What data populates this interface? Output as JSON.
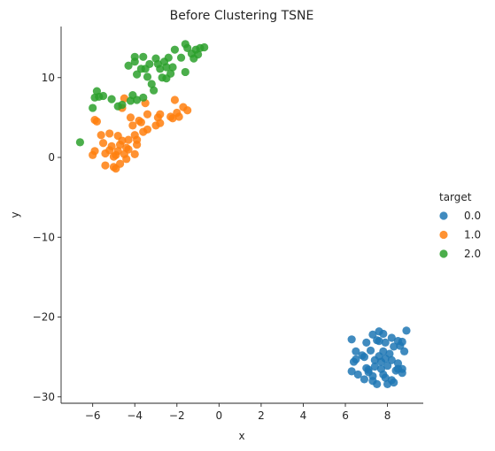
{
  "chart_data": {
    "type": "scatter",
    "title": "Before Clustering TSNE",
    "xlabel": "x",
    "ylabel": "y",
    "xlim": [
      -7.5,
      9.7
    ],
    "ylim": [
      -30.8,
      16.4
    ],
    "xticks": [
      -6,
      -4,
      -2,
      0,
      2,
      4,
      6,
      8
    ],
    "yticks": [
      -30,
      -20,
      -10,
      0,
      10
    ],
    "xtick_labels": [
      "−6",
      "−4",
      "−2",
      "0",
      "2",
      "4",
      "6",
      "8"
    ],
    "ytick_labels": [
      "−30",
      "−20",
      "−10",
      "0",
      "10"
    ],
    "grid": false,
    "legend": {
      "title": "target",
      "placement": "right"
    },
    "series": [
      {
        "name": "0.0",
        "color": "#1f77b4",
        "points": [
          [
            6.3,
            -22.8
          ],
          [
            6.5,
            -24.3
          ],
          [
            6.4,
            -25.6
          ],
          [
            6.8,
            -24.8
          ],
          [
            6.3,
            -26.8
          ],
          [
            7.0,
            -23.2
          ],
          [
            7.3,
            -22.2
          ],
          [
            7.6,
            -21.8
          ],
          [
            7.8,
            -22.1
          ],
          [
            7.5,
            -22.9
          ],
          [
            7.9,
            -23.2
          ],
          [
            8.2,
            -22.6
          ],
          [
            8.5,
            -23.0
          ],
          [
            8.7,
            -23.1
          ],
          [
            8.9,
            -21.7
          ],
          [
            7.2,
            -24.2
          ],
          [
            7.6,
            -24.9
          ],
          [
            7.8,
            -24.3
          ],
          [
            8.1,
            -24.6
          ],
          [
            8.3,
            -23.7
          ],
          [
            8.6,
            -23.6
          ],
          [
            8.8,
            -24.3
          ],
          [
            6.9,
            -25.0
          ],
          [
            7.4,
            -25.4
          ],
          [
            7.7,
            -25.6
          ],
          [
            7.9,
            -25.2
          ],
          [
            8.2,
            -25.4
          ],
          [
            8.5,
            -25.8
          ],
          [
            8.7,
            -26.5
          ],
          [
            6.6,
            -27.2
          ],
          [
            6.9,
            -27.8
          ],
          [
            7.1,
            -26.6
          ],
          [
            7.3,
            -27.4
          ],
          [
            7.5,
            -28.4
          ],
          [
            7.8,
            -27.2
          ],
          [
            8.0,
            -28.4
          ],
          [
            8.2,
            -27.9
          ],
          [
            8.5,
            -26.5
          ],
          [
            8.7,
            -27.0
          ],
          [
            7.4,
            -26.2
          ],
          [
            7.7,
            -26.5
          ],
          [
            8.0,
            -26.1
          ],
          [
            7.0,
            -26.4
          ],
          [
            8.3,
            -28.2
          ],
          [
            7.6,
            -23.0
          ],
          [
            6.5,
            -25.3
          ],
          [
            7.1,
            -26.9
          ],
          [
            7.9,
            -27.6
          ],
          [
            8.4,
            -26.7
          ],
          [
            7.3,
            -28.0
          ]
        ]
      },
      {
        "name": "1.0",
        "color": "#ff7f0e",
        "points": [
          [
            -6.0,
            0.3
          ],
          [
            -5.9,
            0.8
          ],
          [
            -5.9,
            4.7
          ],
          [
            -5.8,
            4.5
          ],
          [
            -5.6,
            2.8
          ],
          [
            -5.5,
            1.8
          ],
          [
            -5.4,
            0.5
          ],
          [
            -5.4,
            -1.0
          ],
          [
            -5.2,
            3.0
          ],
          [
            -5.1,
            1.4
          ],
          [
            -5.0,
            0.1
          ],
          [
            -5.0,
            -1.2
          ],
          [
            -4.9,
            -1.4
          ],
          [
            -4.8,
            2.7
          ],
          [
            -4.8,
            0.8
          ],
          [
            -4.7,
            1.6
          ],
          [
            -4.6,
            2.1
          ],
          [
            -4.6,
            6.2
          ],
          [
            -4.5,
            7.4
          ],
          [
            -4.5,
            0.4
          ],
          [
            -4.4,
            -0.2
          ],
          [
            -4.4,
            1.2
          ],
          [
            -4.3,
            2.2
          ],
          [
            -4.2,
            5.0
          ],
          [
            -4.1,
            4.0
          ],
          [
            -4.0,
            2.8
          ],
          [
            -4.0,
            0.4
          ],
          [
            -3.9,
            1.6
          ],
          [
            -3.8,
            4.6
          ],
          [
            -3.7,
            4.4
          ],
          [
            -3.6,
            3.2
          ],
          [
            -3.5,
            6.8
          ],
          [
            -3.4,
            5.4
          ],
          [
            -3.4,
            3.5
          ],
          [
            -3.0,
            4.0
          ],
          [
            -2.9,
            5.0
          ],
          [
            -2.8,
            4.3
          ],
          [
            -2.8,
            5.4
          ],
          [
            -2.3,
            5.1
          ],
          [
            -2.2,
            4.9
          ],
          [
            -2.1,
            7.2
          ],
          [
            -2.0,
            5.6
          ],
          [
            -1.9,
            5.1
          ],
          [
            -1.7,
            6.3
          ],
          [
            -1.5,
            5.9
          ],
          [
            -5.2,
            0.9
          ],
          [
            -4.9,
            0.3
          ],
          [
            -4.7,
            -0.8
          ],
          [
            -4.3,
            1.0
          ],
          [
            -3.9,
            2.2
          ]
        ]
      },
      {
        "name": "2.0",
        "color": "#2ca02c",
        "points": [
          [
            -6.6,
            1.9
          ],
          [
            -6.0,
            6.2
          ],
          [
            -5.9,
            7.5
          ],
          [
            -5.8,
            8.3
          ],
          [
            -5.7,
            7.6
          ],
          [
            -5.5,
            7.7
          ],
          [
            -5.1,
            7.3
          ],
          [
            -4.8,
            6.4
          ],
          [
            -4.6,
            6.6
          ],
          [
            -4.2,
            7.1
          ],
          [
            -4.1,
            7.8
          ],
          [
            -3.9,
            7.2
          ],
          [
            -3.6,
            7.5
          ],
          [
            -4.3,
            11.5
          ],
          [
            -4.0,
            12.0
          ],
          [
            -3.9,
            10.4
          ],
          [
            -3.7,
            11.1
          ],
          [
            -3.6,
            12.6
          ],
          [
            -3.5,
            11.1
          ],
          [
            -3.4,
            10.1
          ],
          [
            -3.2,
            9.2
          ],
          [
            -3.1,
            8.4
          ],
          [
            -3.0,
            12.4
          ],
          [
            -2.9,
            11.7
          ],
          [
            -2.8,
            11.1
          ],
          [
            -2.7,
            10.0
          ],
          [
            -2.6,
            12.0
          ],
          [
            -2.5,
            11.3
          ],
          [
            -2.4,
            12.5
          ],
          [
            -2.3,
            10.5
          ],
          [
            -2.2,
            11.3
          ],
          [
            -2.1,
            13.5
          ],
          [
            -1.8,
            12.5
          ],
          [
            -1.6,
            14.2
          ],
          [
            -1.5,
            13.7
          ],
          [
            -1.6,
            10.7
          ],
          [
            -1.3,
            13.0
          ],
          [
            -1.2,
            12.4
          ],
          [
            -1.1,
            13.5
          ],
          [
            -1.0,
            12.9
          ],
          [
            -0.9,
            13.7
          ],
          [
            -0.7,
            13.8
          ],
          [
            -2.5,
            9.9
          ],
          [
            -3.3,
            11.7
          ],
          [
            -4.0,
            12.6
          ]
        ]
      }
    ]
  }
}
